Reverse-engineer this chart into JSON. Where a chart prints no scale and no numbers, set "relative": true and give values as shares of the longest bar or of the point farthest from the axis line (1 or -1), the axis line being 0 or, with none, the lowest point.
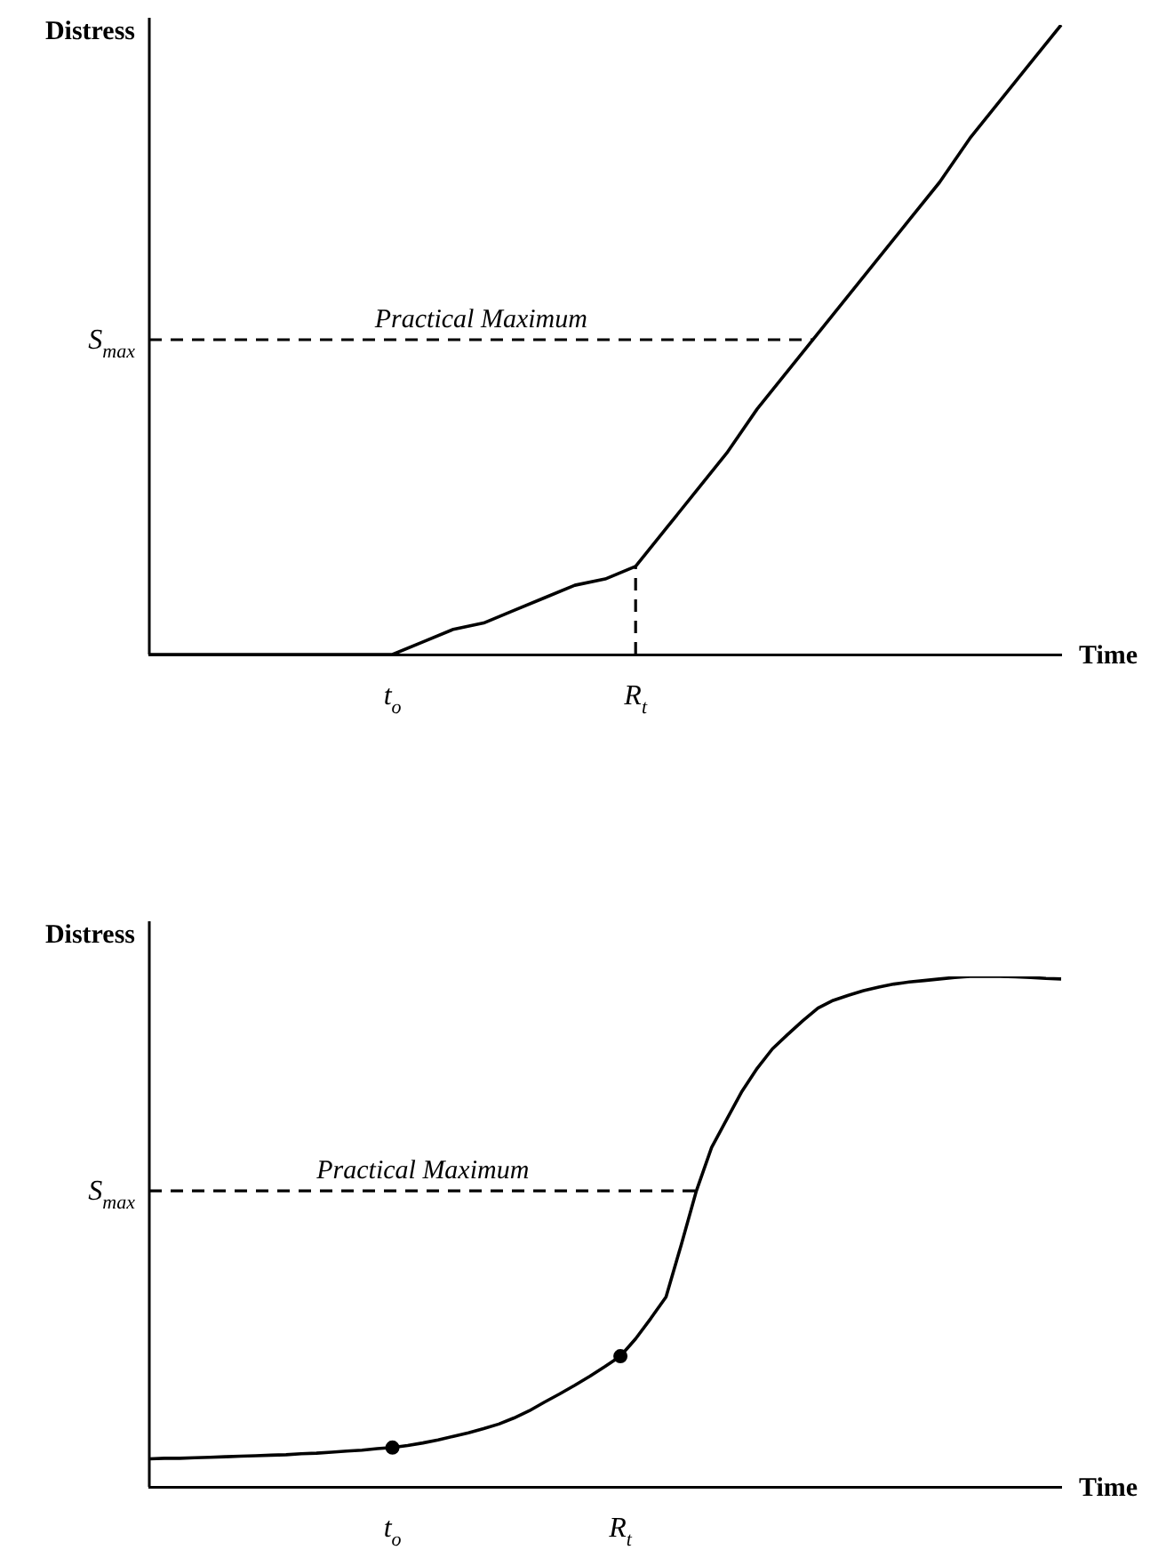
{
  "chart_data": [
    {
      "type": "line",
      "relative": true,
      "ylabel": "Distress",
      "xlabel": "Time",
      "tick_labels": "x",
      "marker": "none",
      "categories": [
        null,
        null,
        null,
        null,
        null,
        null,
        null,
        null,
        "t$_{o}$",
        null,
        null,
        null,
        null,
        null,
        null,
        null,
        "R$_{t}$",
        null,
        null,
        null,
        null,
        null,
        null,
        null,
        null,
        null,
        null,
        null,
        null,
        null,
        null
      ],
      "series": [
        {
          "color": "#000000",
          "values": [
            0,
            0,
            0,
            0,
            0,
            0,
            0,
            0,
            0,
            0.02,
            0.04,
            0.05,
            0.07,
            0.09,
            0.11,
            0.12,
            0.14,
            0.2,
            0.26,
            0.32,
            0.39,
            0.45,
            0.51,
            0.57,
            0.63,
            0.69,
            0.75,
            0.82,
            0.88,
            0.94,
            1
          ]
        }
      ],
      "ref_lines": [
        {
          "axis": "y",
          "value": 0.5,
          "label": "S$_{max}$",
          "line_style": "dashed",
          "color": "#000000"
        },
        {
          "axis": "x",
          "value": "R$_{t}$",
          "line_style": "dashed",
          "color": "#000000"
        }
      ],
      "annotations": [
        "Practical Maximum"
      ]
    },
    {
      "type": "line",
      "relative": true,
      "ylabel": "Distress",
      "xlabel": "Time",
      "tick_labels": "x",
      "marker": "none",
      "categories": [
        null,
        null,
        null,
        null,
        null,
        null,
        null,
        null,
        null,
        null,
        null,
        null,
        null,
        null,
        null,
        null,
        "t$_{o}$",
        null,
        null,
        null,
        null,
        null,
        null,
        null,
        null,
        null,
        null,
        null,
        null,
        null,
        null,
        "R$_{t}$",
        null,
        null,
        null,
        null,
        null,
        null,
        null,
        null,
        null,
        null,
        null,
        null,
        null,
        null,
        null,
        null,
        null,
        null,
        null,
        null,
        null,
        null,
        null,
        null,
        null,
        null,
        null,
        null,
        null
      ],
      "series": [
        {
          "color": "#000000",
          "values": [
            0.055,
            0.056,
            0.056,
            0.057,
            0.058,
            0.059,
            0.06,
            0.061,
            0.062,
            0.063,
            0.065,
            0.066,
            0.068,
            0.07,
            0.072,
            0.075,
            0.077,
            0.081,
            0.086,
            0.092,
            0.099,
            0.106,
            0.114,
            0.123,
            0.135,
            0.149,
            0.166,
            0.182,
            0.199,
            0.217,
            0.236,
            0.256,
            0.29,
            0.33,
            0.372,
            0.474,
            0.58,
            0.665,
            0.72,
            0.775,
            0.82,
            0.858,
            0.886,
            0.913,
            0.938,
            0.953,
            0.963,
            0.972,
            0.979,
            0.985,
            0.989,
            0.992,
            0.995,
            0.998,
            1,
            1,
            1,
            0.999,
            0.998,
            0.996,
            0.995
          ]
        },
        {
          "type": "scatter",
          "marker": "circle",
          "color": "#000000",
          "x": [
            "t$_{o}$",
            "R$_{t}$"
          ],
          "values": [
            0.077,
            0.256
          ]
        }
      ],
      "ref_lines": [
        {
          "axis": "y",
          "value": 0.58,
          "label": "S$_{max}$",
          "line_style": "dashed",
          "color": "#000000"
        }
      ],
      "annotations": [
        "Practical Maximum"
      ]
    }
  ]
}
